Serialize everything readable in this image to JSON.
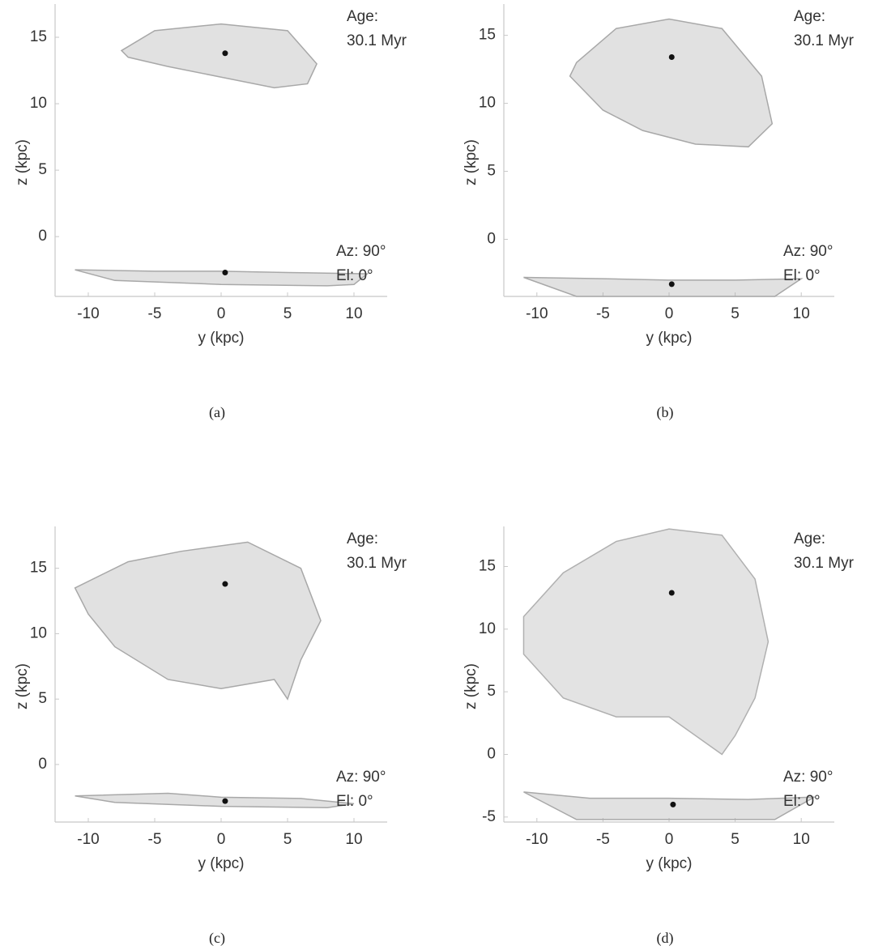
{
  "chart_data": [
    {
      "type": "scatter",
      "xlabel": "y (kpc)",
      "ylabel": "z (kpc)",
      "caption": "(a)",
      "annotations": [
        "Age:",
        "30.1 Myr",
        "Az: 90°",
        "El: 0°"
      ],
      "xlim": [
        -12.5,
        12.5
      ],
      "ylim": [
        -4.5,
        17.5
      ],
      "xticks": [
        -10,
        -5,
        0,
        5,
        10
      ],
      "yticks": [
        0,
        5,
        10,
        15
      ],
      "regions": [
        {
          "color": "#a8a8a8",
          "x": [
            -7.5,
            -5,
            0,
            5,
            7.2,
            6.5,
            4,
            0,
            -4,
            -7
          ],
          "y": [
            14,
            15.5,
            16,
            15.5,
            13,
            11.5,
            11.2,
            12,
            12.8,
            13.5
          ]
        },
        {
          "color": "#a8a8a8",
          "x": [
            -11,
            -5,
            0,
            5,
            11,
            10,
            8,
            0,
            -8
          ],
          "y": [
            -2.5,
            -2.6,
            -2.6,
            -2.7,
            -2.8,
            -3.6,
            -3.7,
            -3.6,
            -3.3
          ]
        }
      ],
      "points": {
        "color": "#111111",
        "x": [
          0.3,
          0.3
        ],
        "y": [
          13.8,
          -2.7
        ]
      }
    },
    {
      "type": "scatter",
      "xlabel": "y (kpc)",
      "ylabel": "z (kpc)",
      "caption": "(b)",
      "annotations": [
        "Age:",
        "30.1 Myr",
        "Az: 90°",
        "El: 0°"
      ],
      "xlim": [
        -12.5,
        12.5
      ],
      "ylim": [
        -4.2,
        17.3
      ],
      "xticks": [
        -10,
        -5,
        0,
        5,
        10
      ],
      "yticks": [
        0,
        5,
        10,
        15
      ],
      "regions": [
        {
          "color": "#a8a8a8",
          "x": [
            -7,
            -4,
            0,
            4,
            7,
            7.8,
            6,
            2,
            -2,
            -5,
            -7.5
          ],
          "y": [
            13,
            15.5,
            16.2,
            15.5,
            12,
            8.5,
            6.8,
            7,
            8,
            9.5,
            12
          ]
        },
        {
          "color": "#a8a8a8",
          "x": [
            -11,
            -5,
            0,
            5,
            10,
            8,
            0,
            -7
          ],
          "y": [
            -2.8,
            -2.9,
            -3,
            -3,
            -2.9,
            -4.2,
            -4.2,
            -4.2
          ]
        }
      ],
      "points": {
        "color": "#111111",
        "x": [
          0.2,
          0.2
        ],
        "y": [
          13.4,
          -3.3
        ]
      }
    },
    {
      "type": "scatter",
      "xlabel": "y (kpc)",
      "ylabel": "z (kpc)",
      "caption": "(c)",
      "annotations": [
        "Age:",
        "30.1 Myr",
        "Az: 90°",
        "El: 0°"
      ],
      "xlim": [
        -12.5,
        12.5
      ],
      "ylim": [
        -4.4,
        18.2
      ],
      "xticks": [
        -10,
        -5,
        0,
        5,
        10
      ],
      "yticks": [
        0,
        5,
        10,
        15
      ],
      "regions": [
        {
          "color": "#a8a8a8",
          "x": [
            -11,
            -7,
            -3,
            2,
            6,
            7.5,
            6,
            5,
            4,
            0,
            -4,
            -8,
            -10
          ],
          "y": [
            13.5,
            15.5,
            16.3,
            17,
            15,
            11,
            8,
            5,
            6.5,
            5.8,
            6.5,
            9,
            11.5
          ]
        },
        {
          "color": "#a8a8a8",
          "x": [
            -11,
            -4,
            0,
            6,
            10,
            8,
            0,
            -8
          ],
          "y": [
            -2.4,
            -2.2,
            -2.5,
            -2.6,
            -3,
            -3.3,
            -3.2,
            -2.9
          ]
        }
      ],
      "points": {
        "color": "#111111",
        "x": [
          0.3,
          0.3
        ],
        "y": [
          13.8,
          -2.8
        ]
      }
    },
    {
      "type": "scatter",
      "xlabel": "y (kpc)",
      "ylabel": "z (kpc)",
      "caption": "(d)",
      "annotations": [
        "Age:",
        "30.1 Myr",
        "Az: 90°",
        "El: 0°"
      ],
      "xlim": [
        -12.5,
        12.5
      ],
      "ylim": [
        -5.4,
        18.2
      ],
      "xticks": [
        -10,
        -5,
        0,
        5,
        10
      ],
      "yticks": [
        -5,
        0,
        5,
        10,
        15
      ],
      "regions": [
        {
          "color": "#b0b0b0",
          "x": [
            -11,
            -8,
            -4,
            0,
            4,
            6.5,
            7.5,
            6.5,
            5,
            4,
            0,
            -4,
            -8,
            -11
          ],
          "y": [
            11,
            14.5,
            17,
            18,
            17.5,
            14,
            9,
            4.5,
            1.5,
            0,
            3,
            3,
            4.5,
            8
          ]
        },
        {
          "color": "#a8a8a8",
          "x": [
            -11,
            -6,
            0,
            6,
            11,
            8,
            0,
            -7
          ],
          "y": [
            -3,
            -3.5,
            -3.5,
            -3.6,
            -3.4,
            -5.2,
            -5.2,
            -5.2
          ]
        }
      ],
      "points": {
        "color": "#111111",
        "x": [
          0.2,
          0.3
        ],
        "y": [
          12.9,
          -4
        ]
      }
    }
  ]
}
